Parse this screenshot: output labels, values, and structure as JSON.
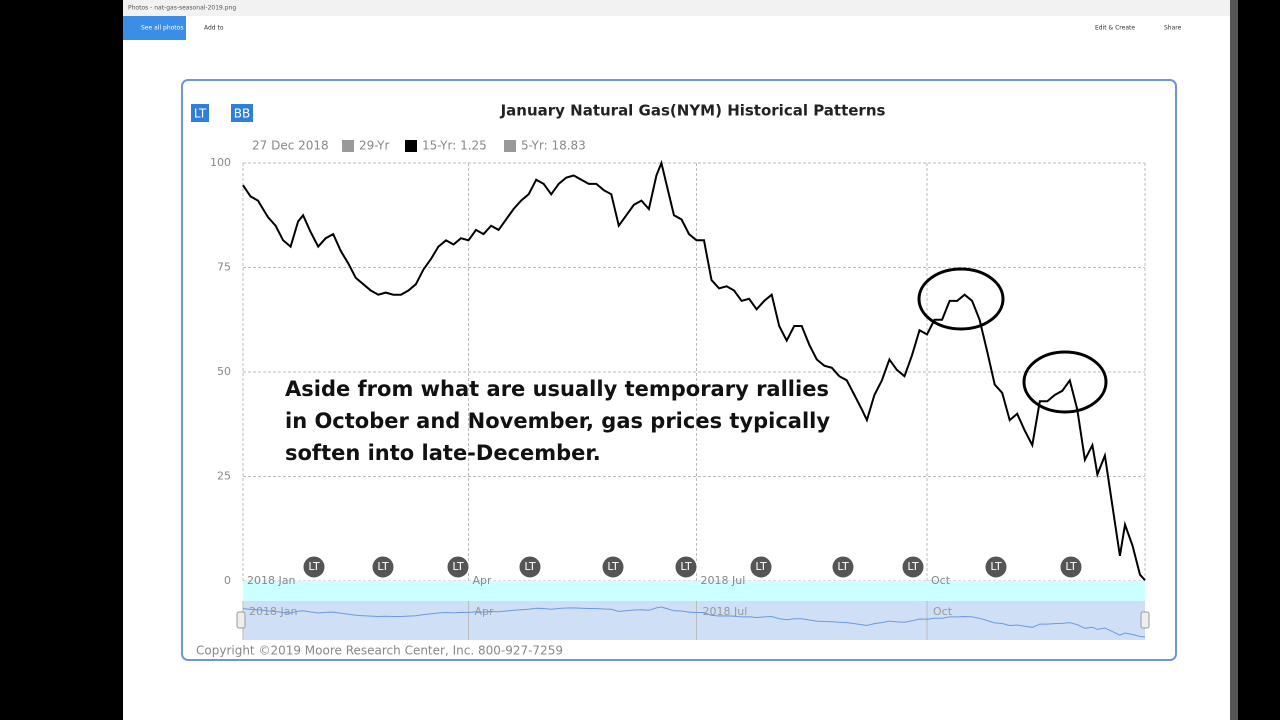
{
  "app": {
    "window_title": "Photos - nat-gas-seasonal-2019.png",
    "see_all": "See all photos",
    "add_to": "Add to",
    "edit_create": "Edit & Create",
    "share": "Share"
  },
  "chart_data": {
    "type": "line",
    "title": "January Natural Gas(NYM) Historical Patterns",
    "buttons": [
      "LT",
      "BB"
    ],
    "date_label": "27 Dec 2018",
    "legend_extra": [
      "29-Yr",
      "5-Yr: 18.83"
    ],
    "x": [
      0,
      3,
      6,
      8,
      10,
      13,
      16,
      19,
      22,
      24,
      27,
      30,
      33,
      36,
      39,
      42,
      45,
      48,
      51,
      54,
      57,
      60,
      63,
      66,
      69,
      72,
      75,
      78,
      81,
      84,
      87,
      90,
      93,
      96,
      99,
      102,
      105,
      108,
      111,
      114,
      117,
      120,
      123,
      126,
      129,
      132,
      135,
      138,
      141,
      144,
      147,
      150,
      153,
      156,
      159,
      162,
      165,
      167,
      169,
      172,
      175,
      178,
      181,
      184,
      187,
      190,
      193,
      196,
      199,
      202,
      205,
      208,
      211,
      214,
      217,
      220,
      223,
      226,
      229,
      232,
      235,
      238,
      241,
      244,
      247,
      249,
      252,
      255,
      258,
      261,
      264,
      267,
      270,
      273,
      276,
      279,
      282,
      285,
      288,
      291,
      294,
      297,
      300,
      303,
      306,
      309,
      312,
      315,
      318,
      321,
      324,
      327,
      330,
      333,
      336,
      339,
      341,
      344,
      347,
      350,
      352,
      355,
      358,
      360
    ],
    "series": [
      {
        "name": "15-Yr: 1.25",
        "color": "#000000",
        "values": [
          94.7,
          92,
          91,
          89,
          87,
          85,
          81.5,
          80,
          86,
          87.5,
          83.5,
          80,
          82,
          83,
          79,
          76,
          72.5,
          71,
          69.5,
          68.5,
          69,
          68.5,
          68.5,
          69.5,
          71,
          74.5,
          77,
          80,
          81.5,
          80.5,
          82,
          81.5,
          84,
          83,
          85,
          84,
          86.5,
          89,
          91,
          92.5,
          96,
          95,
          92.5,
          95,
          96.5,
          97,
          96,
          95,
          95,
          93.5,
          92.5,
          85,
          87.5,
          90,
          91,
          89,
          97,
          100,
          95,
          87.5,
          86.5,
          83,
          81.5,
          81.5,
          72,
          70,
          70.5,
          69.5,
          67,
          67.5,
          65,
          67,
          68.5,
          61,
          57.5,
          61,
          61,
          56.5,
          53,
          51.5,
          51,
          49,
          48,
          44.5,
          41,
          38.5,
          44.5,
          48,
          53,
          50.5,
          49,
          54,
          60,
          59,
          62.5,
          62.5,
          67,
          67,
          68.5,
          67,
          62.5,
          55,
          47,
          45,
          38.5,
          40,
          36,
          32.5,
          43,
          43,
          44.5,
          45.5,
          48,
          41,
          29,
          32.5,
          25.5,
          30,
          18,
          6,
          13.5,
          8.5,
          1.5,
          0.2
        ]
      }
    ],
    "xlim": [
      0,
      360
    ],
    "xticks": [
      {
        "value": 0,
        "label": "2018 Jan"
      },
      {
        "value": 90,
        "label": "Apr"
      },
      {
        "value": 181,
        "label": "2018 Jul"
      },
      {
        "value": 273,
        "label": "Oct"
      }
    ],
    "ylim": [
      0,
      100
    ],
    "yticks": [
      0,
      25,
      50,
      75,
      100
    ],
    "grid": true,
    "markers": [
      "LT",
      "LT",
      "LT",
      "LT",
      "LT",
      "LT",
      "LT",
      "LT",
      "LT",
      "LT",
      "LT"
    ],
    "annotation": [
      "Aside from what are usually temporary rallies",
      "in October and November, gas prices typically",
      "soften into late-December."
    ],
    "copyright": "Copyright ©2019 Moore Research Center, Inc. 800-927-7259"
  }
}
